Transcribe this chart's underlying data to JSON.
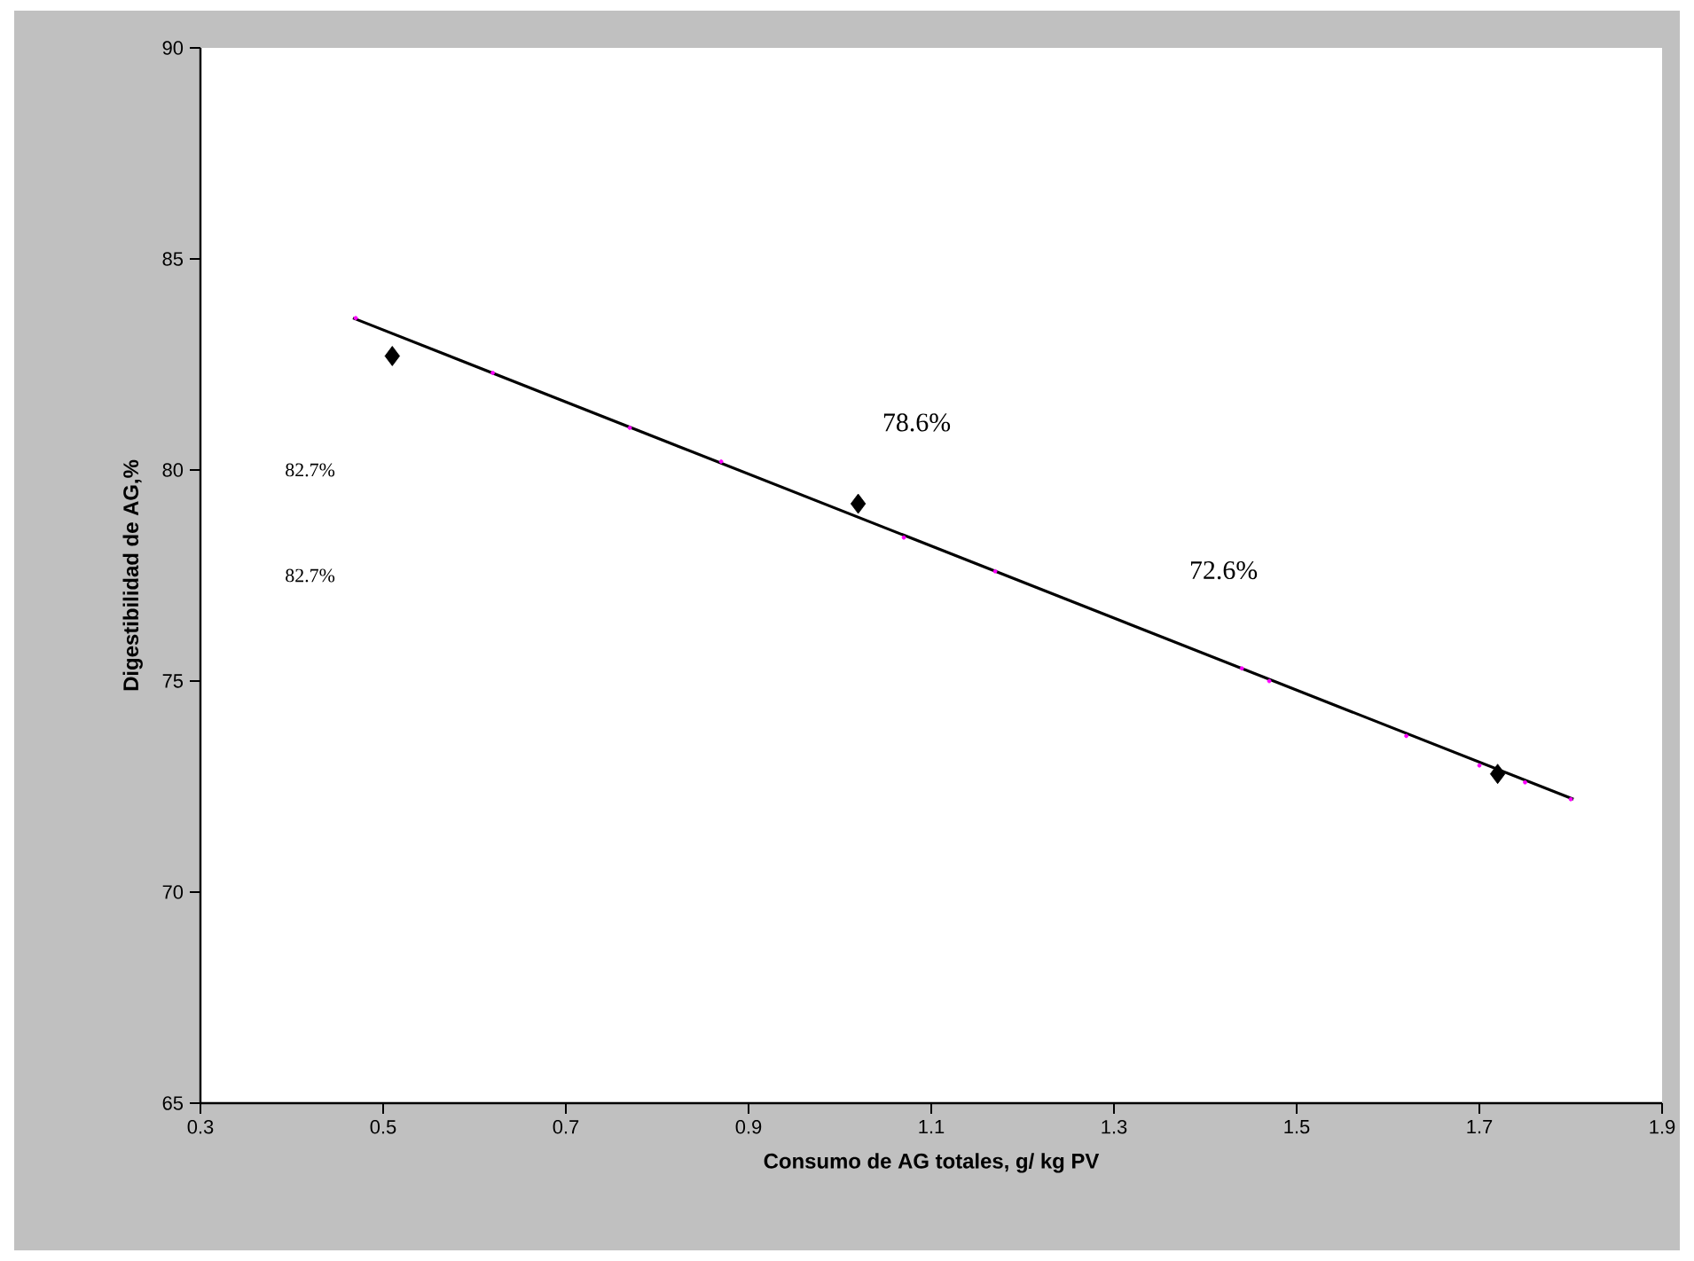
{
  "chart_data": {
    "type": "scatter",
    "xlabel": "Consumo de AG totales, g/ kg PV",
    "ylabel": "Digestibilidad de AG,%",
    "xlim": [
      0.3,
      1.9
    ],
    "xticks": [
      0.3,
      0.5,
      0.7,
      0.9,
      1.1,
      1.3,
      1.5,
      1.7,
      1.9
    ],
    "ylim": [
      65,
      90
    ],
    "yticks": [
      65,
      70,
      75,
      80,
      85,
      90
    ],
    "grid": false,
    "series": [
      {
        "type": "line",
        "color": "#000000",
        "marker": "none",
        "line_style": "solid",
        "x": [
          0.467,
          1.803
        ],
        "values": [
          83.6,
          72.2
        ]
      },
      {
        "color": "#ff00ff",
        "marker": "circle",
        "x": [
          0.47,
          0.62,
          0.77,
          0.87,
          1.07,
          1.17,
          1.44,
          1.47,
          1.62,
          1.7,
          1.75,
          1.8
        ],
        "values": [
          83.6,
          82.3,
          81.0,
          80.2,
          78.4,
          77.6,
          75.3,
          75.0,
          73.7,
          73.0,
          72.6,
          72.2
        ]
      },
      {
        "color": "#000000",
        "marker": "diamond",
        "x": [
          0.51,
          1.02,
          1.72
        ],
        "values": [
          82.7,
          79.2,
          72.8
        ]
      }
    ],
    "annotations": [
      "82.7%",
      "82.7%",
      "78.6%",
      "72.6%"
    ]
  }
}
